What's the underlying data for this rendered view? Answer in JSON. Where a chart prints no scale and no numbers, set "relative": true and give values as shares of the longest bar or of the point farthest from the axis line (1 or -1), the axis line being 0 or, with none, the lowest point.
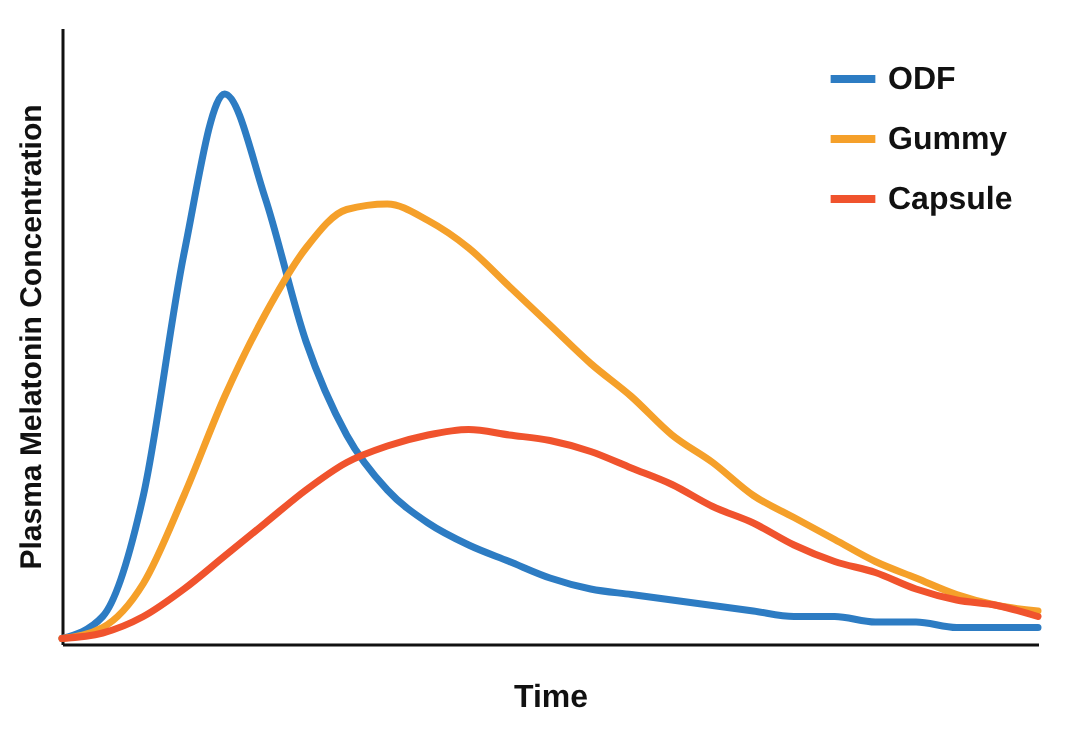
{
  "chart_data": {
    "type": "line",
    "relative": true,
    "xlabel": "Time",
    "ylabel": "Plasma Melatonin Concentration",
    "legend": "top right",
    "grid": false,
    "marker": "none",
    "line_style": "solid",
    "categories": [
      null,
      null,
      null,
      null,
      null,
      null,
      null,
      null,
      null,
      null,
      null,
      null,
      null,
      null,
      null,
      null,
      null,
      null,
      null,
      null,
      null,
      null,
      null,
      null,
      null
    ],
    "series": [
      {
        "name": "ODF",
        "color": "#2d7cc3",
        "values": [
          0.01,
          0.05,
          0.27,
          0.71,
          1.0,
          0.81,
          0.55,
          0.38,
          0.28,
          0.22,
          0.18,
          0.15,
          0.12,
          0.1,
          0.09,
          0.08,
          0.07,
          0.06,
          0.05,
          0.05,
          0.04,
          0.04,
          0.03,
          0.03,
          0.03
        ]
      },
      {
        "name": "Gummy",
        "color": "#f5a02a",
        "values": [
          0.01,
          0.03,
          0.11,
          0.27,
          0.45,
          0.6,
          0.72,
          0.79,
          0.8,
          0.77,
          0.72,
          0.65,
          0.58,
          0.51,
          0.45,
          0.38,
          0.33,
          0.27,
          0.23,
          0.19,
          0.15,
          0.12,
          0.09,
          0.07,
          0.06
        ]
      },
      {
        "name": "Capsule",
        "color": "#f0532d",
        "values": [
          0.01,
          0.02,
          0.05,
          0.1,
          0.16,
          0.22,
          0.28,
          0.33,
          0.36,
          0.38,
          0.39,
          0.38,
          0.37,
          0.35,
          0.32,
          0.29,
          0.25,
          0.22,
          0.18,
          0.15,
          0.13,
          0.1,
          0.08,
          0.07,
          0.05
        ]
      }
    ]
  }
}
